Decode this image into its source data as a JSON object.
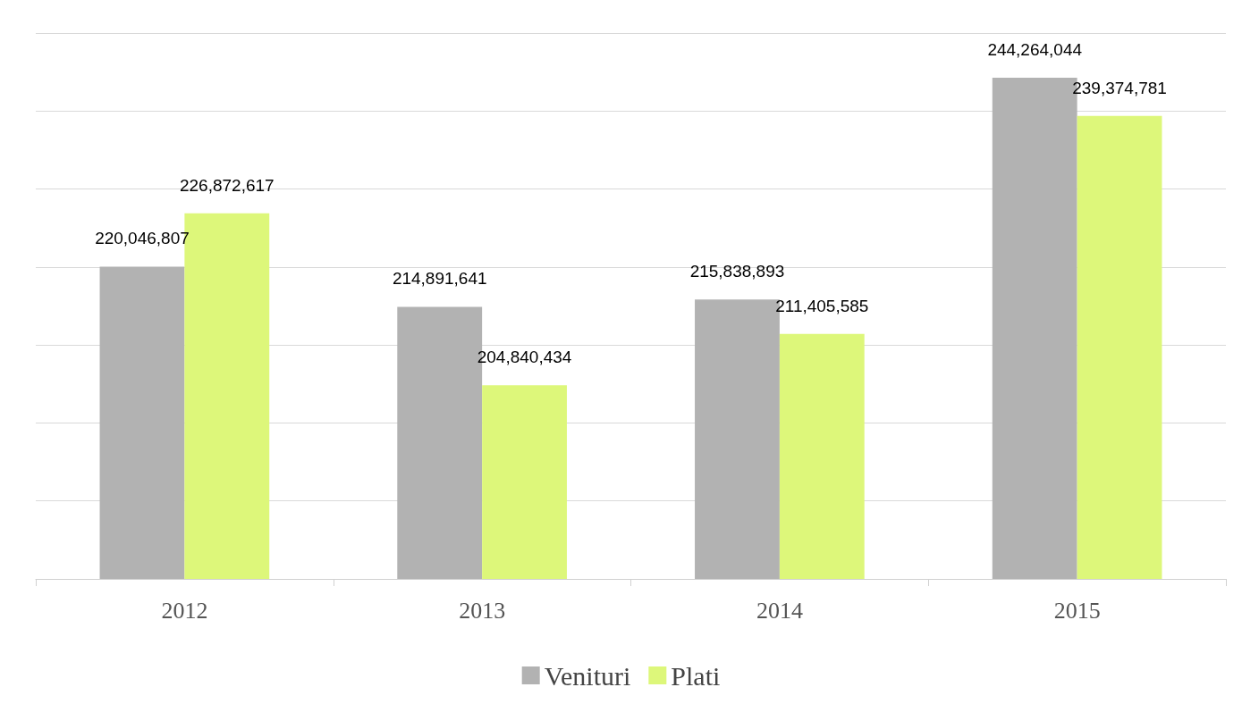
{
  "chart_data": {
    "type": "bar",
    "categories": [
      "2012",
      "2013",
      "2014",
      "2015"
    ],
    "series": [
      {
        "name": "Venituri",
        "color": "#b2b2b2",
        "values": [
          220046807,
          214891641,
          215838893,
          244264044
        ],
        "value_labels": [
          "220,046,807",
          "214,891,641",
          "215,838,893",
          "244,264,044"
        ]
      },
      {
        "name": "Plati",
        "color": "#ddf77a",
        "values": [
          226872617,
          204840434,
          211405585,
          239374781
        ],
        "value_labels": [
          "226,872,617",
          "204,840,434",
          "211,405,585",
          "239,374,781"
        ]
      }
    ],
    "ylim": [
      180000000,
      250000000
    ],
    "yticks": [
      {
        "value": 180000000,
        "label": null
      },
      {
        "value": 190000000,
        "label": null
      },
      {
        "value": 200000000,
        "label": null
      },
      {
        "value": 210000000,
        "label": null
      },
      {
        "value": 220000000,
        "label": null
      },
      {
        "value": 230000000,
        "label": null
      },
      {
        "value": 240000000,
        "label": null
      },
      {
        "value": 250000000,
        "label": null
      }
    ],
    "tick_labels": "x",
    "grid": "y",
    "legend": "bottom"
  }
}
